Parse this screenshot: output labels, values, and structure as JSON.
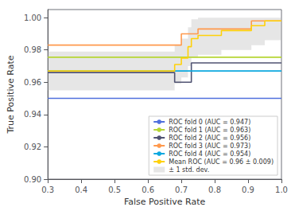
{
  "chart_data": {
    "type": "step",
    "xlabel": "False Positive Rate",
    "ylabel": "True Positive Rate",
    "xlim": [
      0.3,
      1.0
    ],
    "ylim": [
      0.9,
      1.005
    ],
    "xticks": [
      0.3,
      0.4,
      0.5,
      0.6,
      0.7,
      0.8,
      0.9,
      {
        "value": 1.0,
        "label": "1.0"
      }
    ],
    "yticks": [
      {
        "value": 0.9,
        "label": "0.90"
      },
      0.92,
      0.94,
      0.96,
      0.98,
      {
        "value": 1.0,
        "label": "1.00"
      }
    ],
    "grid": false,
    "legend": "lower right",
    "series": [
      {
        "name": "ROC fold 0 (AUC = 0.947)",
        "x": [
          0.3,
          0.68,
          0.68,
          1.0
        ],
        "values": [
          0.95,
          0.95,
          0.95,
          0.95
        ]
      },
      {
        "name": "ROC fold 1 (AUC = 0.963)",
        "x": [
          0.3,
          0.72,
          0.72,
          1.0
        ],
        "values": [
          0.9755,
          0.9755,
          0.9755,
          0.9755
        ]
      },
      {
        "name": "ROC fold 2 (AUC = 0.956)",
        "x": [
          0.3,
          0.68,
          0.68,
          0.73,
          0.73,
          0.82,
          0.82,
          1.0
        ],
        "values": [
          0.966,
          0.966,
          0.96,
          0.96,
          0.972,
          0.972,
          0.972,
          0.972
        ]
      },
      {
        "name": "ROC fold 3 (AUC = 0.973)",
        "x": [
          0.3,
          0.7,
          0.7,
          0.75,
          0.75,
          0.91,
          0.91,
          1.0
        ],
        "values": [
          0.983,
          0.983,
          0.99,
          0.99,
          0.993,
          0.993,
          0.998,
          0.998
        ]
      },
      {
        "name": "ROC fold 4 (AUC = 0.954)",
        "x": [
          0.3,
          1.0
        ],
        "values": [
          0.967,
          0.967
        ]
      },
      {
        "name": "Mean ROC (AUC = 0.96 ± 0.009)",
        "x": [
          0.3,
          0.68,
          0.68,
          0.7,
          0.7,
          0.72,
          0.72,
          0.73,
          0.73,
          0.75,
          0.75,
          0.82,
          0.82,
          0.91,
          0.91,
          0.95,
          0.95,
          1.0
        ],
        "values": [
          0.967,
          0.967,
          0.971,
          0.971,
          0.975,
          0.975,
          0.982,
          0.982,
          0.987,
          0.987,
          0.989,
          0.989,
          0.992,
          0.992,
          0.995,
          0.995,
          0.998,
          0.998
        ]
      },
      {
        "name": "± 1 std. dev.",
        "type": "area",
        "color": "#b8b8b8",
        "x": [
          0.3,
          0.68,
          0.68,
          0.7,
          0.7,
          0.72,
          0.72,
          0.73,
          0.73,
          0.75,
          0.75,
          0.82,
          0.82,
          0.91,
          0.91,
          0.95,
          0.95,
          1.0
        ],
        "lower": [
          0.955,
          0.955,
          0.959,
          0.959,
          0.963,
          0.963,
          0.97,
          0.97,
          0.975,
          0.975,
          0.977,
          0.977,
          0.98,
          0.98,
          0.983,
          0.983,
          0.986,
          0.986
        ],
        "upper": [
          0.979,
          0.979,
          0.983,
          0.983,
          0.987,
          0.987,
          0.994,
          0.994,
          0.999,
          0.999,
          1.0,
          1.0,
          1.0,
          1.0,
          1.0,
          1.0,
          1.0,
          1.0
        ]
      }
    ]
  }
}
